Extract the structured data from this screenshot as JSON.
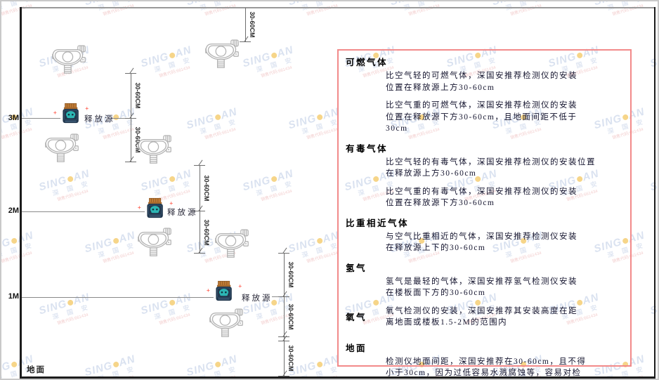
{
  "diagram": {
    "heights": [
      "3M",
      "2M",
      "1M"
    ],
    "ground": "地面",
    "source_label": "释放源",
    "dim_label": "30-60CM"
  },
  "panel": {
    "sections": [
      {
        "heading": "可燃气体",
        "paragraphs": [
          "比空气轻的可燃气体，深国安推荐检测仪的安装\n位置在释放源上方30-60cm",
          "比空气重的可燃气体，深国安推荐检测仪的安装\n位置在释放源下方30-60cm，且地面间距不低于\n30cm"
        ]
      },
      {
        "heading": "有毒气体",
        "paragraphs": [
          "比空气轻的有毒气体，深国安推荐检测仪的安装位置\n在释放源上方30-60cm",
          "比空气重的有毒气体，深国安推荐检测仪的安装\n位置在释放源下方30-60cm"
        ]
      },
      {
        "heading": "比重相近气体",
        "paragraphs": [
          "与空气比重相近的气体，深国安推荐检测仪安装\n在释放源上下的30-60cm"
        ]
      },
      {
        "heading": "氢气",
        "paragraphs": [
          "氢气是最轻的气体，深国安推荐氢气检测仪安装\n在楼板面下方的30-60cm"
        ]
      },
      {
        "heading": "氧气",
        "paragraphs": [
          "氧气检测仪的安装，深国安推荐其安装高度在距\n离地面或楼板1.5-2M的范围内"
        ]
      },
      {
        "heading": "地面",
        "paragraphs": [
          "检测仪地面间距，深国安推荐在30-60cm，且不得\n小于30cm，因为过低容易水溅腐蚀等，容易对检\n测仪造成伤害"
        ]
      }
    ]
  },
  "watermark": {
    "brand_left": "SING",
    "brand_right": "AN",
    "cn": "深 国 安",
    "code": "销售代码:661434"
  },
  "colors": {
    "panel_border": "#f28a8a",
    "source_body": "#22384e",
    "source_face": "#2cb6b4",
    "source_cap": "#c07b35",
    "detector_stroke": "#b3b3b3",
    "watermark_blue": "#bccbe5"
  }
}
